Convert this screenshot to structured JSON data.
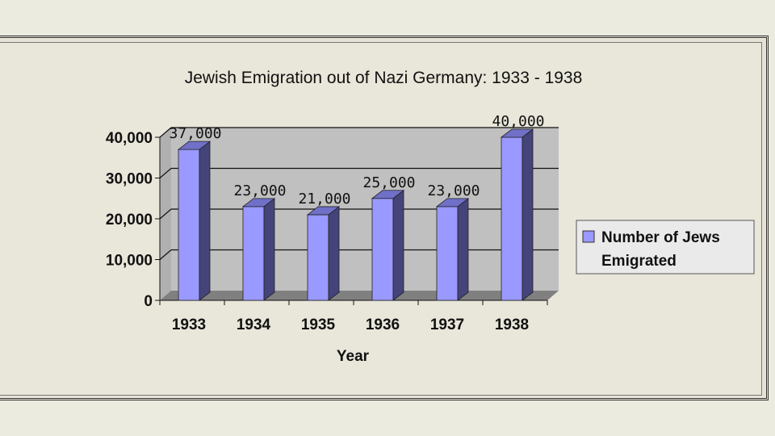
{
  "chart_data": {
    "type": "bar",
    "title": "Jewish Emigration out of Nazi Germany: 1933 - 1938",
    "xlabel": "Year",
    "ylabel": "",
    "categories": [
      "1933",
      "1934",
      "1935",
      "1936",
      "1937",
      "1938"
    ],
    "series": [
      {
        "name": "Number of Jews Emigrated",
        "values": [
          37000,
          23000,
          21000,
          25000,
          23000,
          40000
        ],
        "data_labels": [
          "37,000",
          "23,000",
          "21,000",
          "25,000",
          "23,000",
          "40,000"
        ]
      }
    ],
    "ylim": [
      0,
      40000
    ],
    "yticks": [
      0,
      10000,
      20000,
      30000,
      40000
    ],
    "ytick_labels": [
      "0",
      "10,000",
      "20,000",
      "30,000",
      "40,000"
    ],
    "legend": {
      "placement": "right",
      "lines": [
        "Number of Jews",
        "Emigrated"
      ]
    },
    "grid": true,
    "colors": {
      "bar_front": "#9999ff",
      "bar_side": "#44447a",
      "bar_top": "#7070c8",
      "wall": "#c0c0c0",
      "floor": "#808080"
    }
  }
}
